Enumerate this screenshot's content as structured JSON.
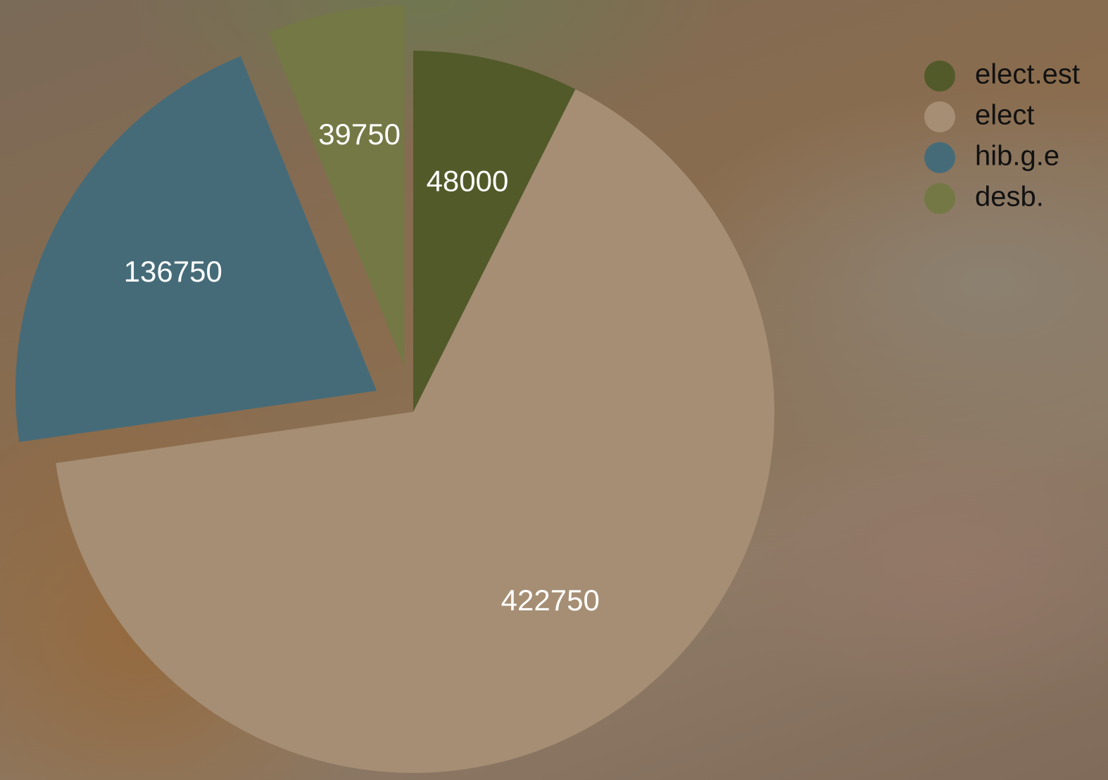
{
  "chart_data": {
    "type": "pie",
    "categories": [
      "elect.est",
      "elect",
      "hib.g.e",
      "desb."
    ],
    "values": [
      48000,
      422750,
      136750,
      39750
    ],
    "colors": [
      "#525a2a",
      "#a58e74",
      "#466b78",
      "#747845"
    ],
    "legend": "top-right"
  }
}
